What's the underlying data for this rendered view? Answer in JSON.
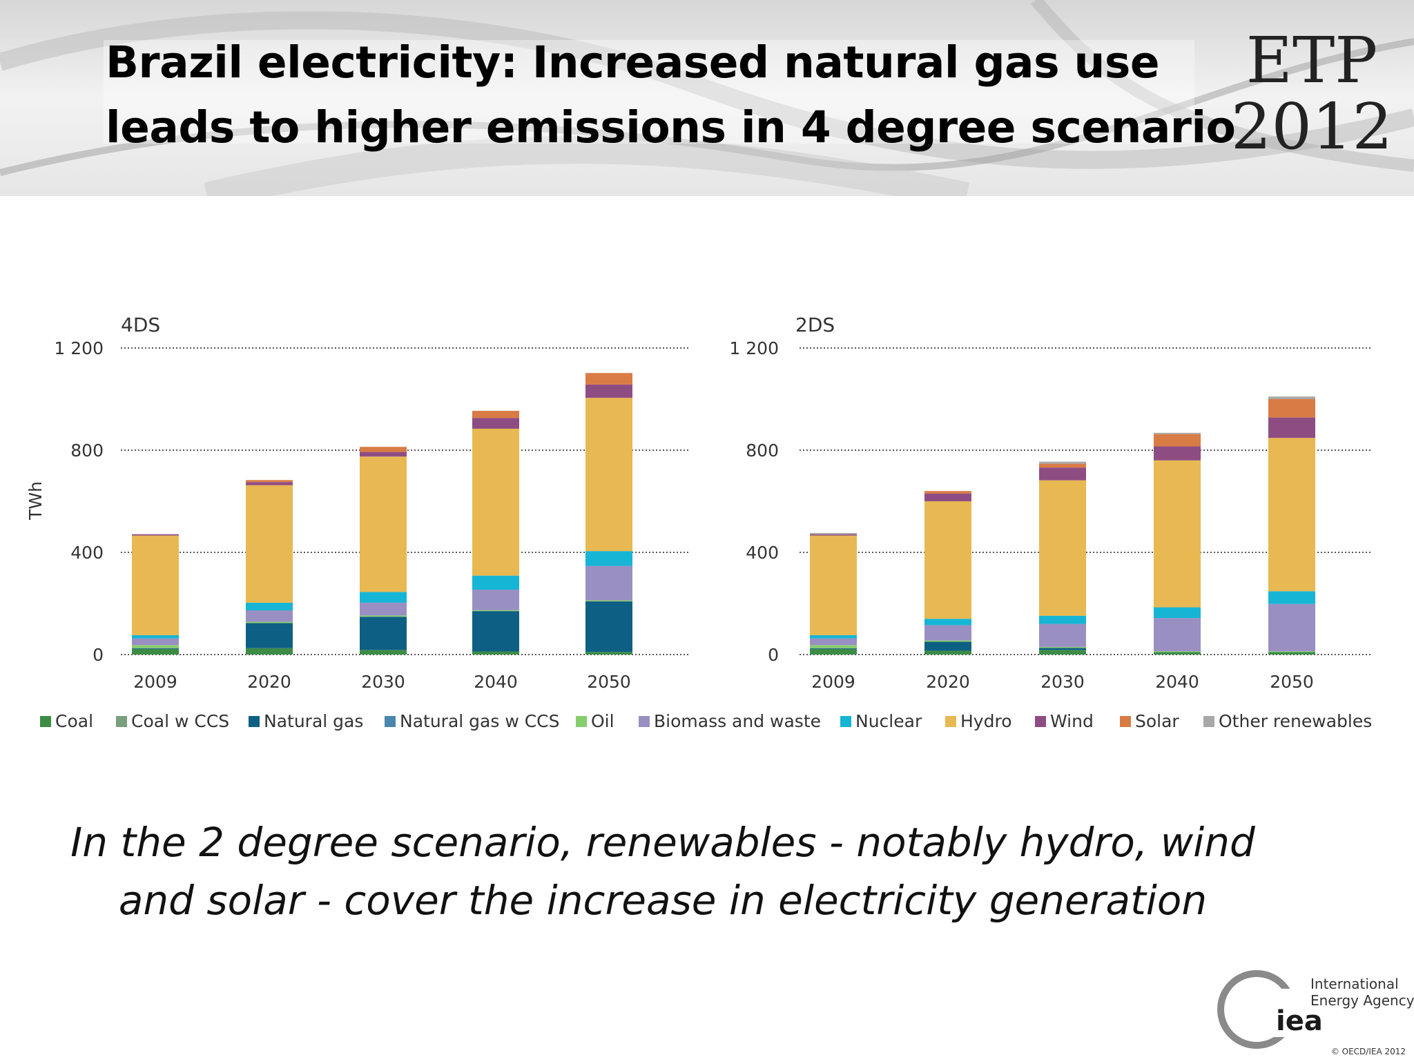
{
  "title": {
    "line1": "Brazil electricity: Increased natural gas use",
    "line2": "leads to higher emissions in 4 degree scenario"
  },
  "logo": {
    "line1": "ETP",
    "line2": "2012"
  },
  "caption": {
    "line1": "In the 2 degree scenario, renewables - notably hydro, wind",
    "line2": "and solar - cover the increase in electricity generation"
  },
  "iea": {
    "mark": "iea",
    "name_line1": "International",
    "name_line2": "Energy Agency",
    "copyright": "© OECD/IEA 2012"
  },
  "chart_data": [
    {
      "type": "bar",
      "stacked": true,
      "panel_label": "4DS",
      "ylabel": "TWh",
      "ylim": [
        0,
        1200
      ],
      "yticks": [
        "0",
        "400",
        "800",
        "1 200"
      ],
      "grid": true,
      "categories": [
        "2009",
        "2020",
        "2030",
        "2040",
        "2050"
      ],
      "series": [
        {
          "name": "Coal",
          "color": "#3c8c46",
          "values": [
            22,
            25,
            18,
            12,
            10
          ]
        },
        {
          "name": "Coal w CCS",
          "color": "#7a9f7c",
          "values": [
            0,
            0,
            0,
            0,
            0
          ]
        },
        {
          "name": "Natural gas",
          "color": "#0e5f84",
          "values": [
            3,
            98,
            130,
            158,
            198
          ]
        },
        {
          "name": "Natural gas w CCS",
          "color": "#4a86ad",
          "values": [
            0,
            0,
            0,
            0,
            0
          ]
        },
        {
          "name": "Oil",
          "color": "#86cd6e",
          "values": [
            12,
            5,
            5,
            4,
            4
          ]
        },
        {
          "name": "Biomass and waste",
          "color": "#9a8fc2",
          "values": [
            26,
            45,
            50,
            80,
            135
          ]
        },
        {
          "name": "Nuclear",
          "color": "#17b5d5",
          "values": [
            13,
            30,
            42,
            55,
            58
          ]
        },
        {
          "name": "Hydro",
          "color": "#e8b852",
          "values": [
            390,
            460,
            530,
            575,
            600
          ]
        },
        {
          "name": "Wind",
          "color": "#8e4d82",
          "values": [
            5,
            12,
            18,
            42,
            52
          ]
        },
        {
          "name": "Solar",
          "color": "#d97b45",
          "values": [
            0,
            8,
            20,
            28,
            45
          ]
        },
        {
          "name": "Other renewables",
          "color": "#a8a8a8",
          "values": [
            0,
            0,
            0,
            0,
            0
          ]
        }
      ]
    },
    {
      "type": "bar",
      "stacked": true,
      "panel_label": "2DS",
      "ylabel": "",
      "ylim": [
        0,
        1200
      ],
      "yticks": [
        "0",
        "400",
        "800",
        "1 200"
      ],
      "grid": true,
      "categories": [
        "2009",
        "2020",
        "2030",
        "2040",
        "2050"
      ],
      "series": [
        {
          "name": "Coal",
          "color": "#3c8c46",
          "values": [
            22,
            15,
            18,
            10,
            10
          ]
        },
        {
          "name": "Coal w CCS",
          "color": "#7a9f7c",
          "values": [
            0,
            0,
            0,
            0,
            0
          ]
        },
        {
          "name": "Natural gas",
          "color": "#0e5f84",
          "values": [
            3,
            35,
            8,
            0,
            0
          ]
        },
        {
          "name": "Natural gas w CCS",
          "color": "#4a86ad",
          "values": [
            0,
            0,
            0,
            0,
            0
          ]
        },
        {
          "name": "Oil",
          "color": "#86cd6e",
          "values": [
            12,
            5,
            4,
            3,
            3
          ]
        },
        {
          "name": "Biomass and waste",
          "color": "#9a8fc2",
          "values": [
            26,
            60,
            90,
            130,
            185
          ]
        },
        {
          "name": "Nuclear",
          "color": "#17b5d5",
          "values": [
            13,
            25,
            32,
            42,
            50
          ]
        },
        {
          "name": "Hydro",
          "color": "#e8b852",
          "values": [
            390,
            460,
            530,
            575,
            600
          ]
        },
        {
          "name": "Wind",
          "color": "#8e4d82",
          "values": [
            5,
            30,
            50,
            55,
            80
          ]
        },
        {
          "name": "Solar",
          "color": "#d97b45",
          "values": [
            0,
            10,
            15,
            48,
            72
          ]
        },
        {
          "name": "Other renewables",
          "color": "#a8a8a8",
          "values": [
            5,
            0,
            8,
            5,
            10
          ]
        }
      ]
    }
  ]
}
